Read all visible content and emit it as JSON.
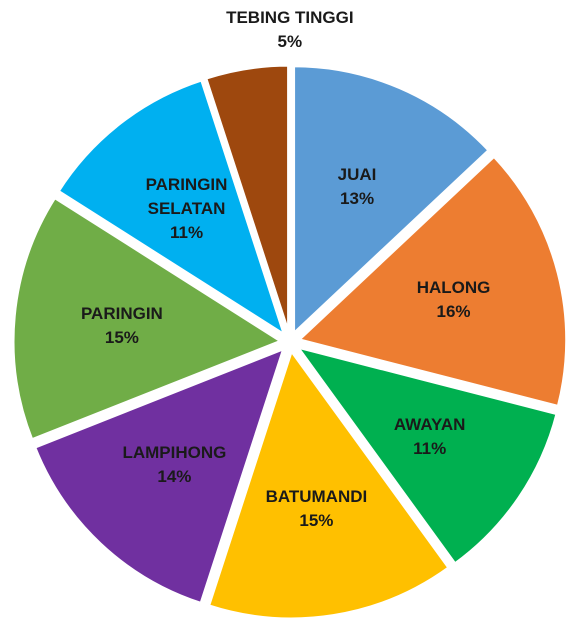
{
  "chart_data": {
    "type": "pie",
    "categories": [
      "JUAI",
      "HALONG",
      "AWAYAN",
      "BATUMANDI",
      "LAMPIHONG",
      "PARINGIN",
      "PARINGIN SELATAN",
      "TEBING TINGGI"
    ],
    "values": [
      13,
      16,
      11,
      15,
      14,
      15,
      11,
      5
    ],
    "value_labels": [
      "13%",
      "16%",
      "11%",
      "15%",
      "14%",
      "15%",
      "11%",
      "5%"
    ],
    "colors": [
      "#5b9bd5",
      "#ed7d31",
      "#00b050",
      "#ffc000",
      "#7030a0",
      "#70ad47",
      "#00b0f0",
      "#9e480e"
    ]
  }
}
